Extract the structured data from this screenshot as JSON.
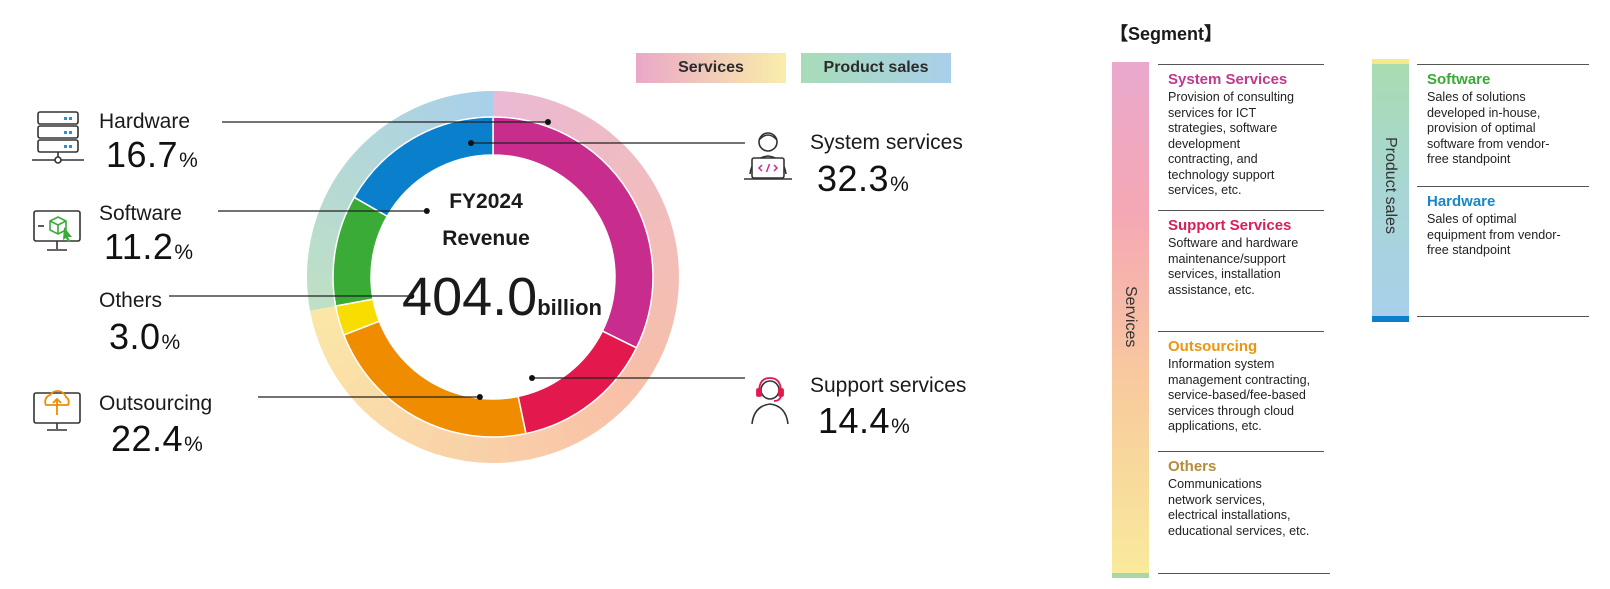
{
  "chart_data": {
    "type": "pie",
    "donut": true,
    "center": {
      "line1": "FY2024",
      "line2": "Revenue",
      "value": "404.0",
      "unit": "billion"
    },
    "legend": [
      {
        "label": "Services",
        "colors": [
          "#eaa8c8",
          "#f9eeaa"
        ]
      },
      {
        "label": "Product sales",
        "colors": [
          "#a8dcb8",
          "#a8cfea"
        ]
      }
    ],
    "percent_unit": "%",
    "inner_ring": [
      {
        "name": "System services",
        "value": 32.3,
        "value_label": "32.3",
        "color": "#c82c8c"
      },
      {
        "name": "Support services",
        "value": 14.4,
        "value_label": "14.4",
        "color": "#e3194e"
      },
      {
        "name": "Outsourcing",
        "value": 22.4,
        "value_label": "22.4",
        "color": "#ef8c00"
      },
      {
        "name": "Others",
        "value": 3.0,
        "value_label": "3.0",
        "color": "#f7de00"
      },
      {
        "name": "Software",
        "value": 11.2,
        "value_label": "11.2",
        "color": "#3aab36"
      },
      {
        "name": "Hardware",
        "value": 16.7,
        "value_label": "16.7",
        "color": "#0a7fcc"
      }
    ],
    "outer_ring": [
      {
        "group": "Services",
        "value": 72.1,
        "colors": [
          "#eab9d2",
          "#f8c0a8",
          "#fbe6a8"
        ]
      },
      {
        "group": "Product sales",
        "value": 27.9,
        "colors": [
          "#bfe0c4",
          "#a8d0ea"
        ]
      }
    ]
  },
  "segment_panel": {
    "title": "【Segment】",
    "services_label": "Services",
    "product_label": "Product sales",
    "services_items": [
      {
        "title": "System Services",
        "color": "#c0398f",
        "text": [
          "Provision of consulting",
          "services for ICT",
          "strategies, software",
          "development",
          "contracting, and",
          "technology support",
          "services, etc."
        ]
      },
      {
        "title": "Support Services",
        "color": "#d81e5b",
        "text": [
          "Software and hardware",
          "maintenance/support",
          "services, installation",
          "assistance, etc."
        ]
      },
      {
        "title": "Outsourcing",
        "color": "#ea9612",
        "text": [
          "Information system",
          "management contracting,",
          "service-based/fee-based",
          "services through cloud",
          "applications, etc."
        ]
      },
      {
        "title": "Others",
        "color": "#b28d3c",
        "text": [
          "Communications",
          "network services,",
          "electrical installations,",
          "educational services, etc."
        ]
      }
    ],
    "product_items": [
      {
        "title": "Software",
        "color": "#3aa935",
        "text": [
          "Sales of solutions",
          "developed in-house,",
          "provision of optimal",
          "software from vendor-",
          "free standpoint"
        ]
      },
      {
        "title": "Hardware",
        "color": "#1a86c8",
        "text": [
          "Sales of optimal",
          "equipment from vendor-",
          "free standpoint"
        ]
      }
    ]
  }
}
